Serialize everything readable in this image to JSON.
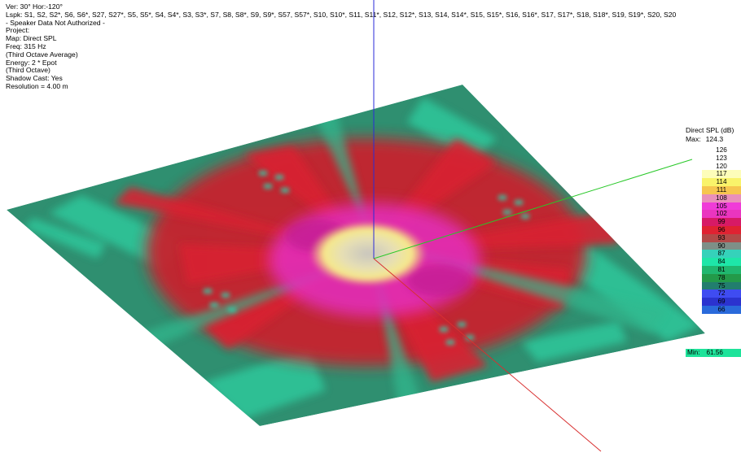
{
  "info": {
    "view": "Ver: 30°  Hor:-120°",
    "loudspeakers": "Lspk: S1, S2, S2*, S6, S6*, S27, S27*, S5, S5*, S4, S4*, S3, S3*, S7, S8, S8*, S9, S9*, S57, S57*, S10, S10*, S11, S11*, S12, S12*, S13, S14, S14*, S15, S15*, S16, S16*, S17, S17*, S18, S18*, S19, S19*, S20, S20",
    "warning": "- Speaker Data Not Authorized -",
    "project": "Project:",
    "map": "Map: Direct SPL",
    "freq": "Freq: 315 Hz",
    "averaging": "(Third Octave Average)",
    "energy": "Energy: 2 * Epot",
    "bandwidth": "(Third Octave)",
    "shadow": "Shadow Cast: Yes",
    "resolution": "Resolution =   4.00 m"
  },
  "legend": {
    "title": "Direct SPL (dB)",
    "max_label": "Max:",
    "max_value": "124.3",
    "min_label": "Min:",
    "min_value": "61.56",
    "steps": [
      {
        "label": "126",
        "color": "#ffffff"
      },
      {
        "label": "123",
        "color": "#ffffff"
      },
      {
        "label": "120",
        "color": "#ffffff"
      },
      {
        "label": "117",
        "color": "#fdfdb9"
      },
      {
        "label": "114",
        "color": "#f9f36a"
      },
      {
        "label": "111",
        "color": "#f6c64f"
      },
      {
        "label": "108",
        "color": "#e990ba"
      },
      {
        "label": "105",
        "color": "#f03bd8"
      },
      {
        "label": "102",
        "color": "#ea35bf"
      },
      {
        "label": "99",
        "color": "#d71a66"
      },
      {
        "label": "96",
        "color": "#e02232"
      },
      {
        "label": "93",
        "color": "#b24a48"
      },
      {
        "label": "90",
        "color": "#7e8f87"
      },
      {
        "label": "87",
        "color": "#35d2ba"
      },
      {
        "label": "84",
        "color": "#1ee6a8"
      },
      {
        "label": "81",
        "color": "#20b76f"
      },
      {
        "label": "78",
        "color": "#239a49"
      },
      {
        "label": "75",
        "color": "#227e6e"
      },
      {
        "label": "72",
        "color": "#3f4cf1"
      },
      {
        "label": "69",
        "color": "#2b33cf"
      },
      {
        "label": "66",
        "color": "#2a6adb"
      }
    ]
  }
}
